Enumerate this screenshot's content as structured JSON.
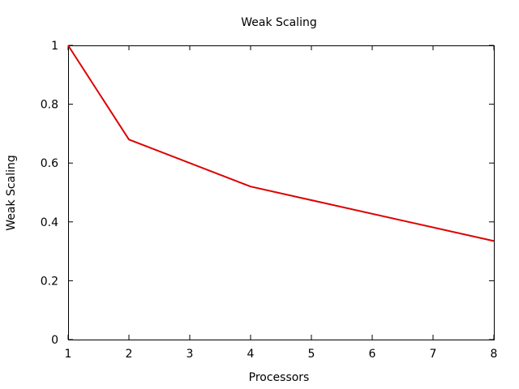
{
  "chart_data": {
    "type": "line",
    "title": "Weak Scaling",
    "xlabel": "Processors",
    "ylabel": "Weak Scaling",
    "xlim": [
      1,
      8
    ],
    "ylim": [
      0,
      1
    ],
    "xticks": [
      1,
      2,
      3,
      4,
      5,
      6,
      7,
      8
    ],
    "yticks": [
      0,
      0.2,
      0.4,
      0.6,
      0.8,
      1
    ],
    "ytick_labels": [
      "0",
      "0.2",
      "0.4",
      "0.6",
      "0.8",
      "1"
    ],
    "grid": false,
    "legend": false,
    "series": [
      {
        "color": "#dd0000",
        "x": [
          1,
          2,
          4,
          8
        ],
        "y": [
          1.0,
          0.68,
          0.52,
          0.335
        ]
      }
    ]
  }
}
